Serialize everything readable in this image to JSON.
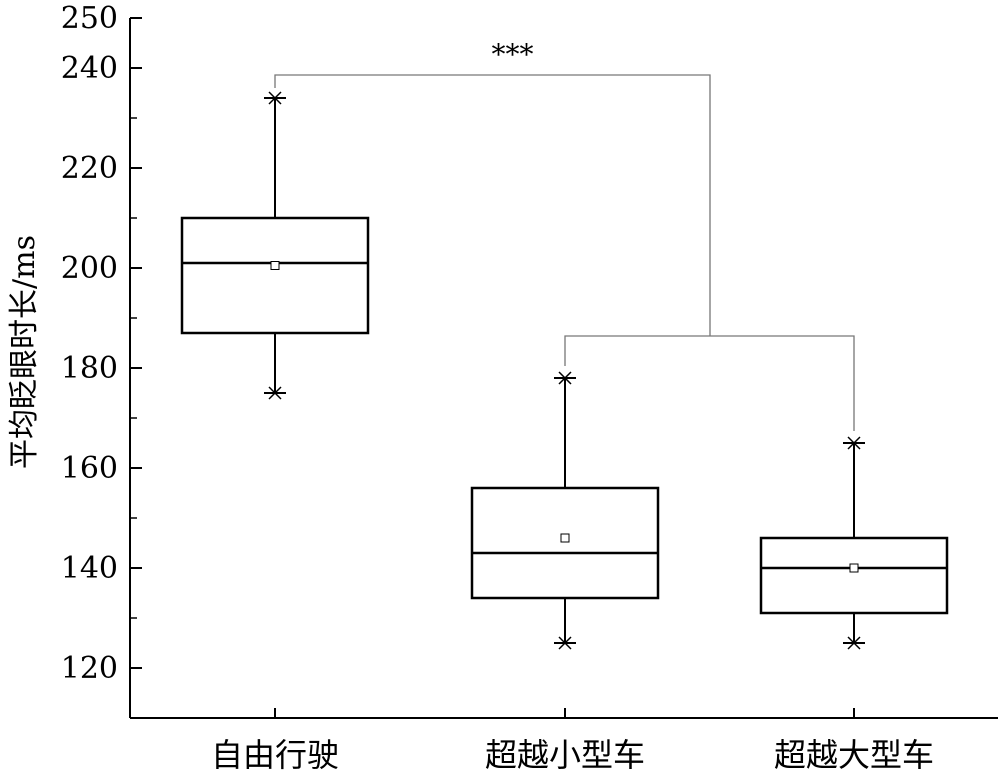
{
  "chart_data": {
    "type": "box",
    "ylabel": "平均眨眼时长/ms",
    "ylim": [
      110,
      250
    ],
    "yticks": [
      120,
      140,
      160,
      180,
      200,
      220,
      240,
      250
    ],
    "categories": [
      "自由行驶",
      "超越小型车",
      "超越大型车"
    ],
    "boxes": [
      {
        "category": "自由行驶",
        "whisker_low": 175,
        "q1": 187,
        "median": 201,
        "q3": 210,
        "whisker_high": 234,
        "mean": 200.5
      },
      {
        "category": "超越小型车",
        "whisker_low": 125,
        "q1": 134,
        "median": 143,
        "q3": 156,
        "whisker_high": 178,
        "mean": 146
      },
      {
        "category": "超越大型车",
        "whisker_low": 125,
        "q1": 131,
        "median": 140,
        "q3": 146,
        "whisker_high": 165,
        "mean": 140
      }
    ],
    "significance": {
      "label": "***",
      "between": [
        "自由行驶",
        [
          "超越小型车",
          "超越大型车"
        ]
      ]
    },
    "grid": false,
    "legend": "none"
  }
}
